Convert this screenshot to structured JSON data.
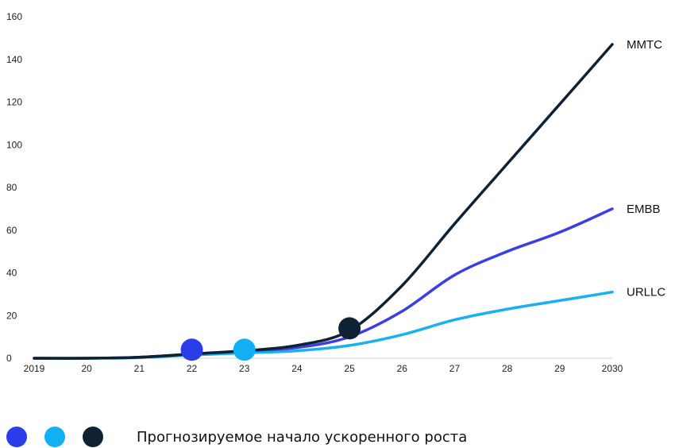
{
  "chart_data": {
    "type": "line",
    "x": [
      2019,
      2020,
      2021,
      2022,
      2023,
      2024,
      2025,
      2026,
      2027,
      2028,
      2029,
      2030
    ],
    "xtick_labels": [
      "2019",
      "20",
      "21",
      "22",
      "23",
      "24",
      "25",
      "26",
      "27",
      "28",
      "29",
      "2030"
    ],
    "yticks": [
      0,
      20,
      40,
      60,
      80,
      100,
      120,
      140,
      160
    ],
    "ylim": [
      0,
      160
    ],
    "xlim": [
      2019,
      2030
    ],
    "grid": false,
    "series": [
      {
        "name": "MMTC",
        "color": "#0f2233",
        "values": [
          0,
          0,
          0.5,
          2,
          3.5,
          6,
          13,
          34,
          63,
          91,
          119,
          147
        ]
      },
      {
        "name": "EMBB",
        "color": "#3b3fe0",
        "values": [
          0,
          0,
          0.5,
          2,
          3.5,
          5,
          10,
          22,
          39,
          50,
          59,
          70
        ]
      },
      {
        "name": "URLLC",
        "color": "#1ab0f0",
        "values": [
          0,
          0,
          0.3,
          1.5,
          2.5,
          3.5,
          6,
          11,
          18,
          23,
          27,
          31
        ]
      }
    ],
    "markers": [
      {
        "x": 2022,
        "y": 4,
        "color": "#2b3de8"
      },
      {
        "x": 2023,
        "y": 4,
        "color": "#12b0f2"
      },
      {
        "x": 2025,
        "y": 14,
        "color": "#0f2233"
      }
    ]
  },
  "legend": {
    "dots": [
      {
        "color": "#2b3de8",
        "icon": "blue-dot-icon"
      },
      {
        "color": "#12b0f2",
        "icon": "light-blue-dot-icon"
      },
      {
        "color": "#0f2233",
        "icon": "dark-dot-icon"
      }
    ],
    "text": "Прогнозируемое начало ускоренного роста"
  }
}
